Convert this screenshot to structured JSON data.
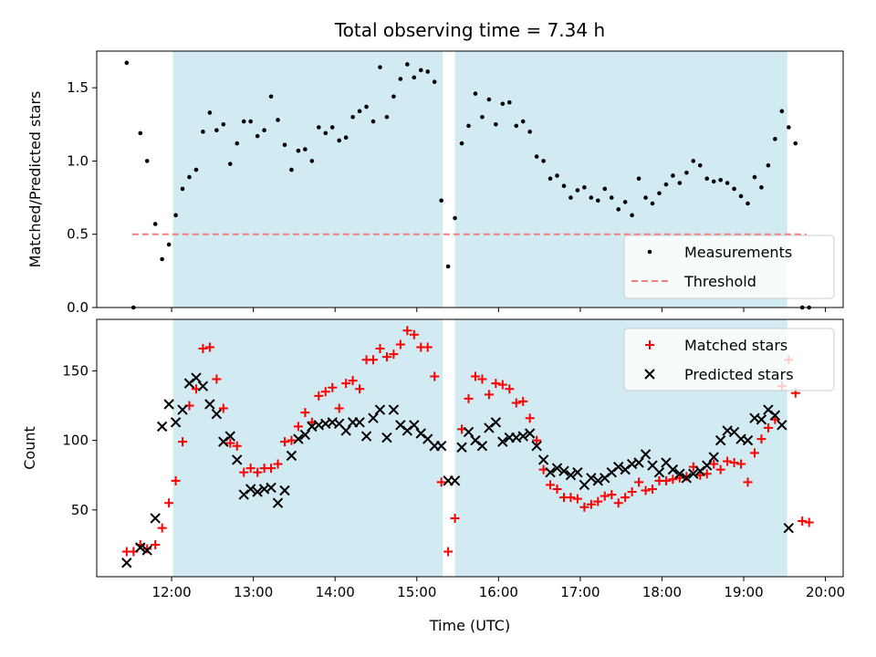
{
  "figure": {
    "title": "Total observing time = 7.34 h",
    "xlabel": "Time (UTC)",
    "x_ticks": [
      "12:00",
      "13:00",
      "14:00",
      "15:00",
      "16:00",
      "17:00",
      "18:00",
      "19:00",
      "20:00"
    ]
  },
  "colors": {
    "observing_window": "#add8e6",
    "measurements": "#000000",
    "threshold": "#f08080",
    "matched": "#ff0000",
    "predicted": "#000000"
  },
  "chart_data": [
    {
      "type": "scatter",
      "ylabel": "Matched/Predicted stars",
      "xlim": [
        "11:05",
        "20:13"
      ],
      "ylim": [
        0,
        1.75
      ],
      "y_ticks": [
        "0.0",
        "0.5",
        "1.0",
        "1.5"
      ],
      "legend_position": "bottom-right",
      "observing_windows": [
        [
          "12:01",
          "15:19"
        ],
        [
          "15:28",
          "19:32"
        ]
      ],
      "threshold": {
        "name": "Threshold",
        "value": 0.5,
        "x_range": [
          "11:31",
          "19:46"
        ],
        "style": "dashed"
      },
      "series": [
        {
          "name": "Measurements",
          "marker": "dot",
          "x": [
            "11:27",
            "11:32",
            "11:37",
            "11:42",
            "11:48",
            "11:53",
            "11:58",
            "12:03",
            "12:08",
            "12:13",
            "12:18",
            "12:23",
            "12:28",
            "12:33",
            "12:38",
            "12:43",
            "12:48",
            "12:53",
            "12:58",
            "13:03",
            "13:08",
            "13:13",
            "13:18",
            "13:23",
            "13:28",
            "13:33",
            "13:38",
            "13:43",
            "13:48",
            "13:53",
            "13:58",
            "14:03",
            "14:08",
            "14:13",
            "14:18",
            "14:23",
            "14:28",
            "14:33",
            "14:38",
            "14:43",
            "14:48",
            "14:53",
            "14:58",
            "15:03",
            "15:08",
            "15:13",
            "15:18",
            "15:23",
            "15:28",
            "15:33",
            "15:38",
            "15:43",
            "15:48",
            "15:53",
            "15:58",
            "16:03",
            "16:08",
            "16:13",
            "16:18",
            "16:23",
            "16:28",
            "16:33",
            "16:38",
            "16:43",
            "16:48",
            "16:53",
            "16:58",
            "17:03",
            "17:08",
            "17:13",
            "17:18",
            "17:23",
            "17:28",
            "17:33",
            "17:38",
            "17:43",
            "17:48",
            "17:53",
            "17:58",
            "18:03",
            "18:08",
            "18:13",
            "18:18",
            "18:23",
            "18:28",
            "18:33",
            "18:38",
            "18:43",
            "18:48",
            "18:53",
            "18:58",
            "19:03",
            "19:08",
            "19:13",
            "19:18",
            "19:23",
            "19:28",
            "19:33",
            "19:38",
            "19:43",
            "19:48"
          ],
          "y": [
            1.67,
            0.0,
            1.19,
            1.0,
            0.57,
            0.33,
            0.43,
            0.63,
            0.81,
            0.89,
            0.94,
            1.2,
            1.33,
            1.21,
            1.25,
            0.98,
            1.12,
            1.27,
            1.27,
            1.17,
            1.21,
            1.44,
            1.28,
            1.11,
            0.94,
            1.07,
            1.08,
            1.0,
            1.23,
            1.19,
            1.23,
            1.14,
            1.16,
            1.3,
            1.34,
            1.37,
            1.27,
            1.64,
            1.3,
            1.44,
            1.56,
            1.66,
            1.57,
            1.62,
            1.61,
            1.54,
            0.73,
            0.28,
            0.61,
            1.12,
            1.24,
            1.46,
            1.3,
            1.42,
            1.25,
            1.39,
            1.4,
            1.24,
            1.27,
            1.2,
            1.03,
            1.0,
            0.88,
            0.9,
            0.83,
            0.75,
            0.8,
            0.82,
            0.75,
            0.73,
            0.81,
            0.75,
            0.67,
            0.72,
            0.63,
            0.88,
            0.75,
            0.71,
            0.78,
            0.84,
            0.9,
            0.85,
            0.92,
            1.0,
            0.97,
            0.88,
            0.86,
            0.87,
            0.85,
            0.81,
            0.76,
            0.71,
            0.89,
            0.82,
            0.97,
            1.15,
            1.34,
            1.23,
            1.12,
            0.0,
            0.0
          ]
        }
      ]
    },
    {
      "type": "scatter",
      "ylabel": "Count",
      "xlim": [
        "11:05",
        "20:13"
      ],
      "ylim": [
        2,
        187
      ],
      "y_ticks": [
        "50",
        "100",
        "150"
      ],
      "legend_position": "top-right",
      "observing_windows": [
        [
          "12:01",
          "15:19"
        ],
        [
          "15:28",
          "19:32"
        ]
      ],
      "series": [
        {
          "name": "Matched stars",
          "marker": "plus",
          "x": [
            "11:27",
            "11:32",
            "11:37",
            "11:42",
            "11:48",
            "11:53",
            "11:58",
            "12:03",
            "12:08",
            "12:13",
            "12:18",
            "12:23",
            "12:28",
            "12:33",
            "12:38",
            "12:43",
            "12:48",
            "12:53",
            "12:58",
            "13:03",
            "13:08",
            "13:13",
            "13:18",
            "13:23",
            "13:28",
            "13:33",
            "13:38",
            "13:43",
            "13:48",
            "13:53",
            "13:58",
            "14:03",
            "14:08",
            "14:13",
            "14:18",
            "14:23",
            "14:28",
            "14:33",
            "14:38",
            "14:43",
            "14:48",
            "14:53",
            "14:58",
            "15:03",
            "15:08",
            "15:13",
            "15:18",
            "15:23",
            "15:28",
            "15:33",
            "15:38",
            "15:43",
            "15:48",
            "15:53",
            "15:58",
            "16:03",
            "16:08",
            "16:13",
            "16:18",
            "16:23",
            "16:28",
            "16:33",
            "16:38",
            "16:43",
            "16:48",
            "16:53",
            "16:58",
            "17:03",
            "17:08",
            "17:13",
            "17:18",
            "17:23",
            "17:28",
            "17:33",
            "17:38",
            "17:43",
            "17:48",
            "17:53",
            "17:58",
            "18:03",
            "18:08",
            "18:13",
            "18:18",
            "18:23",
            "18:28",
            "18:33",
            "18:38",
            "18:43",
            "18:48",
            "18:53",
            "18:58",
            "19:03",
            "19:08",
            "19:13",
            "19:18",
            "19:23",
            "19:28",
            "19:33",
            "19:38",
            "19:43",
            "19:48"
          ],
          "y": [
            20,
            20,
            25,
            22,
            25,
            37,
            55,
            71,
            99,
            125,
            137,
            166,
            167,
            144,
            123,
            98,
            96,
            77,
            80,
            77,
            80,
            80,
            83,
            99,
            100,
            110,
            120,
            113,
            132,
            135,
            138,
            123,
            141,
            143,
            137,
            158,
            158,
            166,
            160,
            162,
            169,
            179,
            176,
            167,
            167,
            146,
            70,
            20,
            44,
            108,
            130,
            146,
            144,
            133,
            141,
            140,
            137,
            127,
            128,
            116,
            100,
            79,
            68,
            65,
            59,
            59,
            58,
            52,
            54,
            56,
            60,
            61,
            55,
            59,
            63,
            70,
            64,
            65,
            71,
            71,
            72,
            73,
            74,
            81,
            75,
            76,
            83,
            79,
            85,
            84,
            83,
            70,
            91,
            101,
            109,
            115,
            139,
            158,
            134,
            42,
            41
          ]
        },
        {
          "name": "Predicted stars",
          "marker": "x",
          "x": [
            "11:27",
            "11:37",
            "11:42",
            "11:48",
            "11:53",
            "11:58",
            "12:03",
            "12:08",
            "12:13",
            "12:18",
            "12:23",
            "12:28",
            "12:33",
            "12:38",
            "12:43",
            "12:48",
            "12:53",
            "12:58",
            "13:03",
            "13:08",
            "13:13",
            "13:18",
            "13:23",
            "13:28",
            "13:33",
            "13:38",
            "13:43",
            "13:48",
            "13:53",
            "13:58",
            "14:03",
            "14:08",
            "14:13",
            "14:18",
            "14:23",
            "14:28",
            "14:33",
            "14:38",
            "14:43",
            "14:48",
            "14:53",
            "14:58",
            "15:03",
            "15:08",
            "15:13",
            "15:18",
            "15:23",
            "15:28",
            "15:33",
            "15:38",
            "15:43",
            "15:48",
            "15:53",
            "15:58",
            "16:03",
            "16:08",
            "16:13",
            "16:18",
            "16:23",
            "16:28",
            "16:33",
            "16:38",
            "16:43",
            "16:48",
            "16:53",
            "16:58",
            "17:03",
            "17:08",
            "17:13",
            "17:18",
            "17:23",
            "17:28",
            "17:33",
            "17:38",
            "17:43",
            "17:48",
            "17:53",
            "17:58",
            "18:03",
            "18:08",
            "18:13",
            "18:18",
            "18:23",
            "18:28",
            "18:33",
            "18:38",
            "18:43",
            "18:48",
            "18:53",
            "18:58",
            "19:03",
            "19:08",
            "19:13",
            "19:18",
            "19:23",
            "19:28",
            "19:33"
          ],
          "y": [
            12,
            23,
            21,
            44,
            110,
            126,
            113,
            122,
            141,
            145,
            139,
            126,
            119,
            99,
            103,
            86,
            61,
            65,
            63,
            65,
            66,
            55,
            64,
            89,
            101,
            104,
            110,
            111,
            112,
            113,
            112,
            107,
            113,
            113,
            103,
            116,
            122,
            102,
            122,
            111,
            107,
            111,
            105,
            101,
            96,
            96,
            71,
            71,
            95,
            106,
            100,
            96,
            109,
            113,
            99,
            102,
            102,
            103,
            105,
            96,
            86,
            77,
            80,
            78,
            75,
            77,
            68,
            73,
            71,
            73,
            77,
            81,
            79,
            83,
            84,
            90,
            82,
            77,
            84,
            79,
            76,
            73,
            76,
            78,
            82,
            88,
            100,
            107,
            106,
            101,
            100,
            116,
            115,
            122,
            118,
            111,
            37
          ]
        }
      ]
    }
  ]
}
